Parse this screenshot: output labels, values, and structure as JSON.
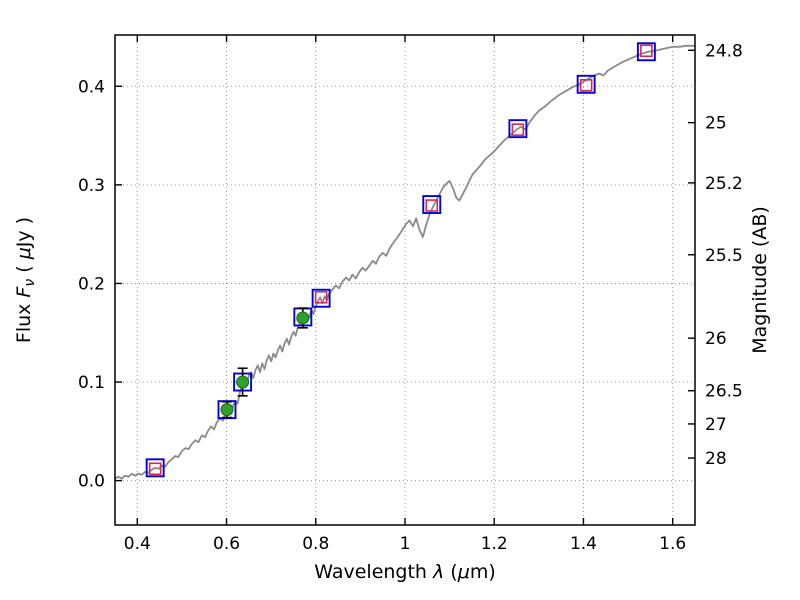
{
  "chart_data": {
    "type": "line",
    "title": "",
    "xlabel": "Wavelength λ (μm)",
    "ylabel_left": "Flux Fν ( μJy )",
    "ylabel_right": "Magnitude (AB)",
    "xlabel_parts": [
      {
        "t": "Wavelength  "
      },
      {
        "t": "λ",
        "i": true
      },
      {
        "t": " ("
      },
      {
        "t": "μ",
        "i": true
      },
      {
        "t": "m)"
      }
    ],
    "ylabel_left_parts": [
      {
        "t": "Flux  "
      },
      {
        "t": "F",
        "i": true
      },
      {
        "t": "ν",
        "i": true,
        "s": true
      },
      {
        "t": " ( "
      },
      {
        "t": "μ",
        "i": true
      },
      {
        "t": "Jy )"
      }
    ],
    "ylabel_right_parts": [
      {
        "t": "Magnitude (AB)"
      }
    ],
    "xlim": [
      0.35,
      1.65
    ],
    "ylim": [
      -0.045,
      0.452
    ],
    "grid": true,
    "legend": "none",
    "x_ticks": [
      {
        "label": "0.4",
        "value": 0.4
      },
      {
        "label": "0.6",
        "value": 0.6
      },
      {
        "label": "0.8",
        "value": 0.8
      },
      {
        "label": "1",
        "value": 1.0
      },
      {
        "label": "1.2",
        "value": 1.2
      },
      {
        "label": "1.4",
        "value": 1.4
      },
      {
        "label": "1.6",
        "value": 1.6
      }
    ],
    "y_ticks_left": [
      {
        "label": "0.0",
        "value": 0.0
      },
      {
        "label": "0.1",
        "value": 0.1
      },
      {
        "label": "0.2",
        "value": 0.2
      },
      {
        "label": "0.3",
        "value": 0.3
      },
      {
        "label": "0.4",
        "value": 0.4
      }
    ],
    "y_ticks_right": [
      {
        "label": "24.8",
        "flux": 0.4365
      },
      {
        "label": "25",
        "flux": 0.3631
      },
      {
        "label": "25.2",
        "flux": 0.302
      },
      {
        "label": "25.5",
        "flux": 0.2291
      },
      {
        "label": "26",
        "flux": 0.1445
      },
      {
        "label": "26.5",
        "flux": 0.0912
      },
      {
        "label": "27",
        "flux": 0.0575
      },
      {
        "label": "28",
        "flux": 0.0229
      }
    ],
    "colors": {
      "spectrum": "#8a8a8a",
      "model_marker": "#0000dd",
      "observed_marker": "#d42a50",
      "detection_marker": "#2da02d",
      "detection_edge": "#156815",
      "errorbar": "#000000",
      "grid": "#9a9a9a",
      "axes": "#000000",
      "background": "#ffffff"
    },
    "series": [
      {
        "name": "model-spectrum",
        "kind": "line",
        "color_key": "spectrum",
        "points": [
          [
            0.35,
            0.002
          ],
          [
            0.358,
            0.004
          ],
          [
            0.365,
            0.002
          ],
          [
            0.372,
            0.005
          ],
          [
            0.38,
            0.004
          ],
          [
            0.388,
            0.007
          ],
          [
            0.395,
            0.005
          ],
          [
            0.402,
            0.007
          ],
          [
            0.41,
            0.006
          ],
          [
            0.418,
            0.009
          ],
          [
            0.425,
            0.008
          ],
          [
            0.432,
            0.011
          ],
          [
            0.44,
            0.013
          ],
          [
            0.448,
            0.012
          ],
          [
            0.455,
            0.015
          ],
          [
            0.462,
            0.014
          ],
          [
            0.47,
            0.019
          ],
          [
            0.478,
            0.022
          ],
          [
            0.485,
            0.025
          ],
          [
            0.492,
            0.024
          ],
          [
            0.5,
            0.03
          ],
          [
            0.508,
            0.033
          ],
          [
            0.515,
            0.032
          ],
          [
            0.522,
            0.037
          ],
          [
            0.53,
            0.041
          ],
          [
            0.537,
            0.039
          ],
          [
            0.545,
            0.046
          ],
          [
            0.552,
            0.044
          ],
          [
            0.558,
            0.05
          ],
          [
            0.565,
            0.055
          ],
          [
            0.572,
            0.052
          ],
          [
            0.578,
            0.059
          ],
          [
            0.585,
            0.063
          ],
          [
            0.592,
            0.061
          ],
          [
            0.598,
            0.068
          ],
          [
            0.604,
            0.072
          ],
          [
            0.61,
            0.069
          ],
          [
            0.615,
            0.076
          ],
          [
            0.62,
            0.081
          ],
          [
            0.625,
            0.078
          ],
          [
            0.63,
            0.09
          ],
          [
            0.635,
            0.097
          ],
          [
            0.64,
            0.103
          ],
          [
            0.645,
            0.098
          ],
          [
            0.65,
            0.106
          ],
          [
            0.655,
            0.11
          ],
          [
            0.66,
            0.104
          ],
          [
            0.665,
            0.112
          ],
          [
            0.67,
            0.117
          ],
          [
            0.675,
            0.11
          ],
          [
            0.68,
            0.119
          ],
          [
            0.685,
            0.113
          ],
          [
            0.69,
            0.122
          ],
          [
            0.695,
            0.127
          ],
          [
            0.7,
            0.121
          ],
          [
            0.705,
            0.129
          ],
          [
            0.71,
            0.125
          ],
          [
            0.715,
            0.132
          ],
          [
            0.72,
            0.137
          ],
          [
            0.725,
            0.131
          ],
          [
            0.73,
            0.139
          ],
          [
            0.735,
            0.144
          ],
          [
            0.74,
            0.138
          ],
          [
            0.745,
            0.146
          ],
          [
            0.75,
            0.151
          ],
          [
            0.755,
            0.147
          ],
          [
            0.76,
            0.156
          ],
          [
            0.765,
            0.16
          ],
          [
            0.77,
            0.165
          ],
          [
            0.775,
            0.162
          ],
          [
            0.78,
            0.169
          ],
          [
            0.785,
            0.165
          ],
          [
            0.79,
            0.173
          ],
          [
            0.795,
            0.169
          ],
          [
            0.8,
            0.177
          ],
          [
            0.805,
            0.182
          ],
          [
            0.81,
            0.186
          ],
          [
            0.815,
            0.18
          ],
          [
            0.82,
            0.187
          ],
          [
            0.825,
            0.183
          ],
          [
            0.83,
            0.19
          ],
          [
            0.838,
            0.194
          ],
          [
            0.845,
            0.198
          ],
          [
            0.852,
            0.195
          ],
          [
            0.86,
            0.202
          ],
          [
            0.868,
            0.206
          ],
          [
            0.875,
            0.203
          ],
          [
            0.882,
            0.209
          ],
          [
            0.89,
            0.205
          ],
          [
            0.898,
            0.212
          ],
          [
            0.905,
            0.216
          ],
          [
            0.912,
            0.213
          ],
          [
            0.92,
            0.218
          ],
          [
            0.928,
            0.223
          ],
          [
            0.935,
            0.22
          ],
          [
            0.942,
            0.227
          ],
          [
            0.95,
            0.231
          ],
          [
            0.958,
            0.228
          ],
          [
            0.965,
            0.235
          ],
          [
            0.972,
            0.24
          ],
          [
            0.98,
            0.245
          ],
          [
            0.988,
            0.25
          ],
          [
            0.995,
            0.255
          ],
          [
            1.002,
            0.26
          ],
          [
            1.01,
            0.264
          ],
          [
            1.018,
            0.258
          ],
          [
            1.025,
            0.266
          ],
          [
            1.032,
            0.255
          ],
          [
            1.04,
            0.247
          ],
          [
            1.048,
            0.26
          ],
          [
            1.055,
            0.27
          ],
          [
            1.062,
            0.277
          ],
          [
            1.07,
            0.284
          ],
          [
            1.078,
            0.291
          ],
          [
            1.085,
            0.297
          ],
          [
            1.092,
            0.301
          ],
          [
            1.1,
            0.304
          ],
          [
            1.108,
            0.296
          ],
          [
            1.115,
            0.287
          ],
          [
            1.122,
            0.284
          ],
          [
            1.13,
            0.291
          ],
          [
            1.138,
            0.298
          ],
          [
            1.145,
            0.305
          ],
          [
            1.152,
            0.311
          ],
          [
            1.16,
            0.315
          ],
          [
            1.17,
            0.32
          ],
          [
            1.18,
            0.326
          ],
          [
            1.19,
            0.33
          ],
          [
            1.2,
            0.334
          ],
          [
            1.21,
            0.339
          ],
          [
            1.22,
            0.344
          ],
          [
            1.23,
            0.348
          ],
          [
            1.24,
            0.352
          ],
          [
            1.25,
            0.356
          ],
          [
            1.26,
            0.359
          ],
          [
            1.27,
            0.356
          ],
          [
            1.28,
            0.364
          ],
          [
            1.29,
            0.37
          ],
          [
            1.3,
            0.375
          ],
          [
            1.315,
            0.38
          ],
          [
            1.33,
            0.386
          ],
          [
            1.345,
            0.391
          ],
          [
            1.36,
            0.395
          ],
          [
            1.375,
            0.399
          ],
          [
            1.39,
            0.402
          ],
          [
            1.405,
            0.406
          ],
          [
            1.42,
            0.41
          ],
          [
            1.435,
            0.413
          ],
          [
            1.445,
            0.411
          ],
          [
            1.455,
            0.416
          ],
          [
            1.47,
            0.42
          ],
          [
            1.485,
            0.424
          ],
          [
            1.5,
            0.427
          ],
          [
            1.515,
            0.43
          ],
          [
            1.53,
            0.433
          ],
          [
            1.545,
            0.435
          ],
          [
            1.56,
            0.436
          ],
          [
            1.58,
            0.438
          ],
          [
            1.6,
            0.44
          ],
          [
            1.615,
            0.44
          ],
          [
            1.63,
            0.441
          ],
          [
            1.65,
            0.441
          ]
        ]
      },
      {
        "name": "model-photometry",
        "kind": "open-square",
        "size": 17,
        "color_key": "model_marker",
        "points": [
          [
            0.44,
            0.013
          ],
          [
            0.601,
            0.072
          ],
          [
            0.636,
            0.1
          ],
          [
            0.771,
            0.166
          ],
          [
            0.812,
            0.185
          ],
          [
            1.06,
            0.28
          ],
          [
            1.253,
            0.357
          ],
          [
            1.406,
            0.402
          ],
          [
            1.541,
            0.435
          ]
        ]
      },
      {
        "name": "observed-photometry",
        "kind": "open-square",
        "size": 11,
        "color_key": "observed_marker",
        "points": [
          [
            0.44,
            0.012
          ],
          [
            0.812,
            0.186
          ],
          [
            1.06,
            0.279
          ],
          [
            1.253,
            0.356
          ],
          [
            1.406,
            0.401
          ],
          [
            1.541,
            0.436
          ]
        ]
      },
      {
        "name": "detected-photometry",
        "kind": "circle-errorbar",
        "size": 12,
        "color_key": "detection_marker",
        "points": [
          {
            "x": 0.601,
            "y": 0.072,
            "yerr": 0.008
          },
          {
            "x": 0.636,
            "y": 0.1,
            "yerr": 0.014
          },
          {
            "x": 0.771,
            "y": 0.165,
            "yerr": 0.01
          }
        ]
      }
    ]
  }
}
